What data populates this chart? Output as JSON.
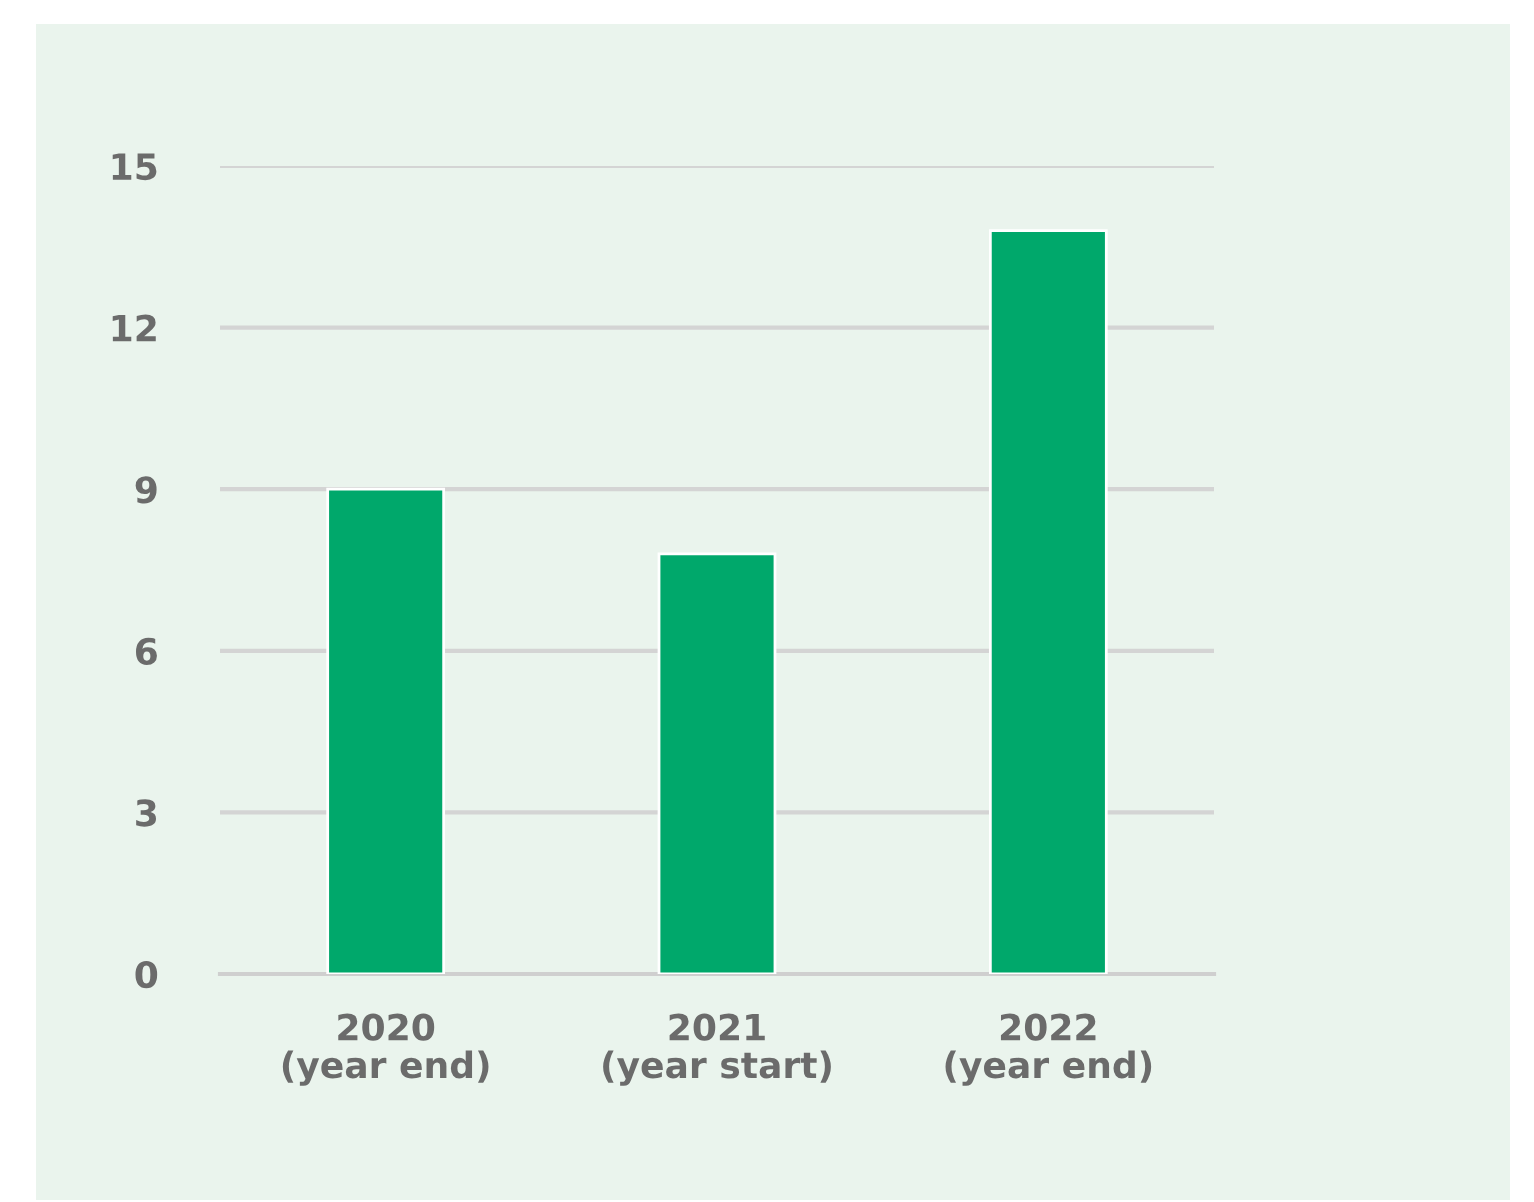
{
  "chart_data": {
    "type": "bar",
    "categories": [
      "2020\n(year end)",
      "2021\n(year start)",
      "2022\n(year end)"
    ],
    "values": [
      9,
      7.8,
      13.8
    ],
    "color": "#00a86b",
    "ylim": [
      0,
      15
    ],
    "yticks": [
      0,
      3,
      6,
      9,
      12,
      15
    ],
    "grid": "y",
    "legend": false
  }
}
